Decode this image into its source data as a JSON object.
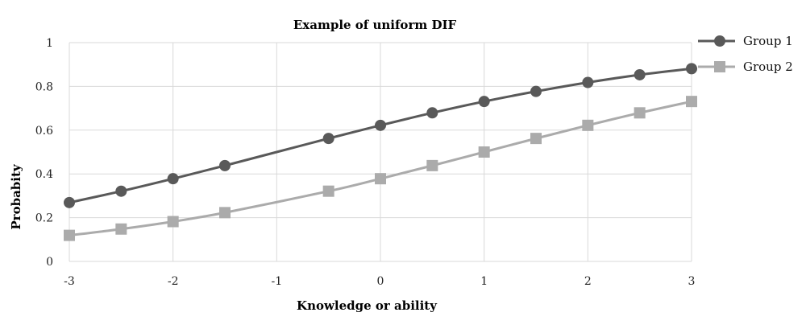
{
  "chart_data": {
    "type": "line",
    "title": "Example of uniform DIF",
    "xlabel": "Knowledge or ability",
    "ylabel": "Probabity",
    "xlim": [
      -3,
      3
    ],
    "ylim": [
      0,
      1
    ],
    "xticks": [
      "-3",
      "-2",
      "-1",
      "0",
      "1",
      "2",
      "3"
    ],
    "yticks": [
      "0",
      "0.2",
      "0.4",
      "0.6",
      "0.8",
      "1"
    ],
    "grid": true,
    "legend_position": "top-right",
    "series": [
      {
        "name": "Group 1",
        "color": "#595959",
        "marker": "circle",
        "x": [
          -3,
          -2.5,
          -2,
          -1.5,
          -0.5,
          0,
          0.5,
          1,
          1.5,
          2,
          2.5,
          3
        ],
        "y": [
          0.269,
          0.321,
          0.378,
          0.438,
          0.562,
          0.622,
          0.679,
          0.731,
          0.777,
          0.818,
          0.853,
          0.881
        ]
      },
      {
        "name": "Group 2",
        "color": "#ababab",
        "marker": "square",
        "x": [
          -3,
          -2.5,
          -2,
          -1.5,
          -0.5,
          0,
          0.5,
          1,
          1.5,
          2,
          2.5,
          3
        ],
        "y": [
          0.119,
          0.148,
          0.182,
          0.223,
          0.321,
          0.378,
          0.438,
          0.5,
          0.562,
          0.622,
          0.679,
          0.731
        ]
      }
    ]
  }
}
